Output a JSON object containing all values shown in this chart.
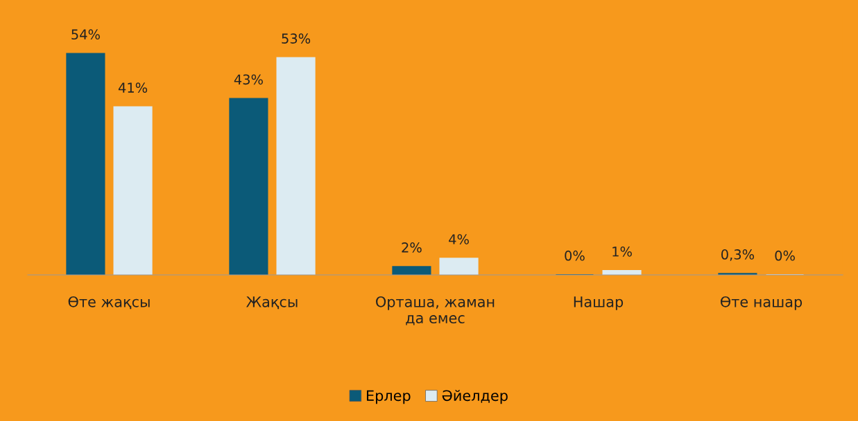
{
  "chart_data": {
    "type": "bar",
    "categories": [
      "Өте жақсы",
      "Жақсы",
      "Орташа, жаман да емес",
      "Нашар",
      "Өте нашар"
    ],
    "series": [
      {
        "name": "Ерлер",
        "color": "#0b5a78",
        "values": [
          54,
          43,
          2,
          0,
          0.3
        ],
        "value_labels": [
          "54%",
          "43%",
          "2%",
          "0%",
          "0,3%"
        ]
      },
      {
        "name": "Әйелдер",
        "color": "#dcebf2",
        "values": [
          41,
          53,
          4,
          1,
          0
        ],
        "value_labels": [
          "41%",
          "53%",
          "4%",
          "1%",
          "0%"
        ]
      }
    ],
    "legend": "bottom",
    "grid": false
  }
}
